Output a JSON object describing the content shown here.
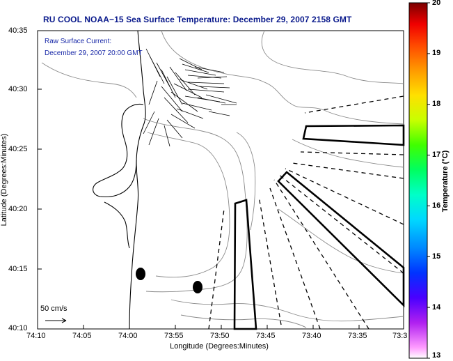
{
  "title": "RU COOL  NOAA−15  Sea Surface Temperature:  December 29, 2007 2158 GMT",
  "annotation": {
    "line1": "Raw Surface Current:",
    "line2": "December 29, 2007 20:00 GMT"
  },
  "scale": {
    "label": "50 cm/s"
  },
  "axes": {
    "xlabel": "Longitude (Degrees:Minutes)",
    "ylabel": "Latitude (Degrees:Minutes)",
    "x_ticks": [
      "74:10",
      "74:05",
      "74:00",
      "73:55",
      "73:50",
      "73:45",
      "73:40",
      "73:35",
      "73:3"
    ],
    "y_ticks": [
      "40:35",
      "40:30",
      "40:25",
      "40:20",
      "40:15",
      "40:10"
    ]
  },
  "colorbar": {
    "label": "Temperature (°C)",
    "ticks": [
      "20",
      "19",
      "18",
      "17",
      "16",
      "15",
      "14",
      "13"
    ],
    "min": 13,
    "max": 20
  },
  "colors": {
    "title": "#0a1a8c",
    "annotation": "#1a2aa8",
    "contour": "#8a8a8a",
    "coast": "#000000"
  }
}
